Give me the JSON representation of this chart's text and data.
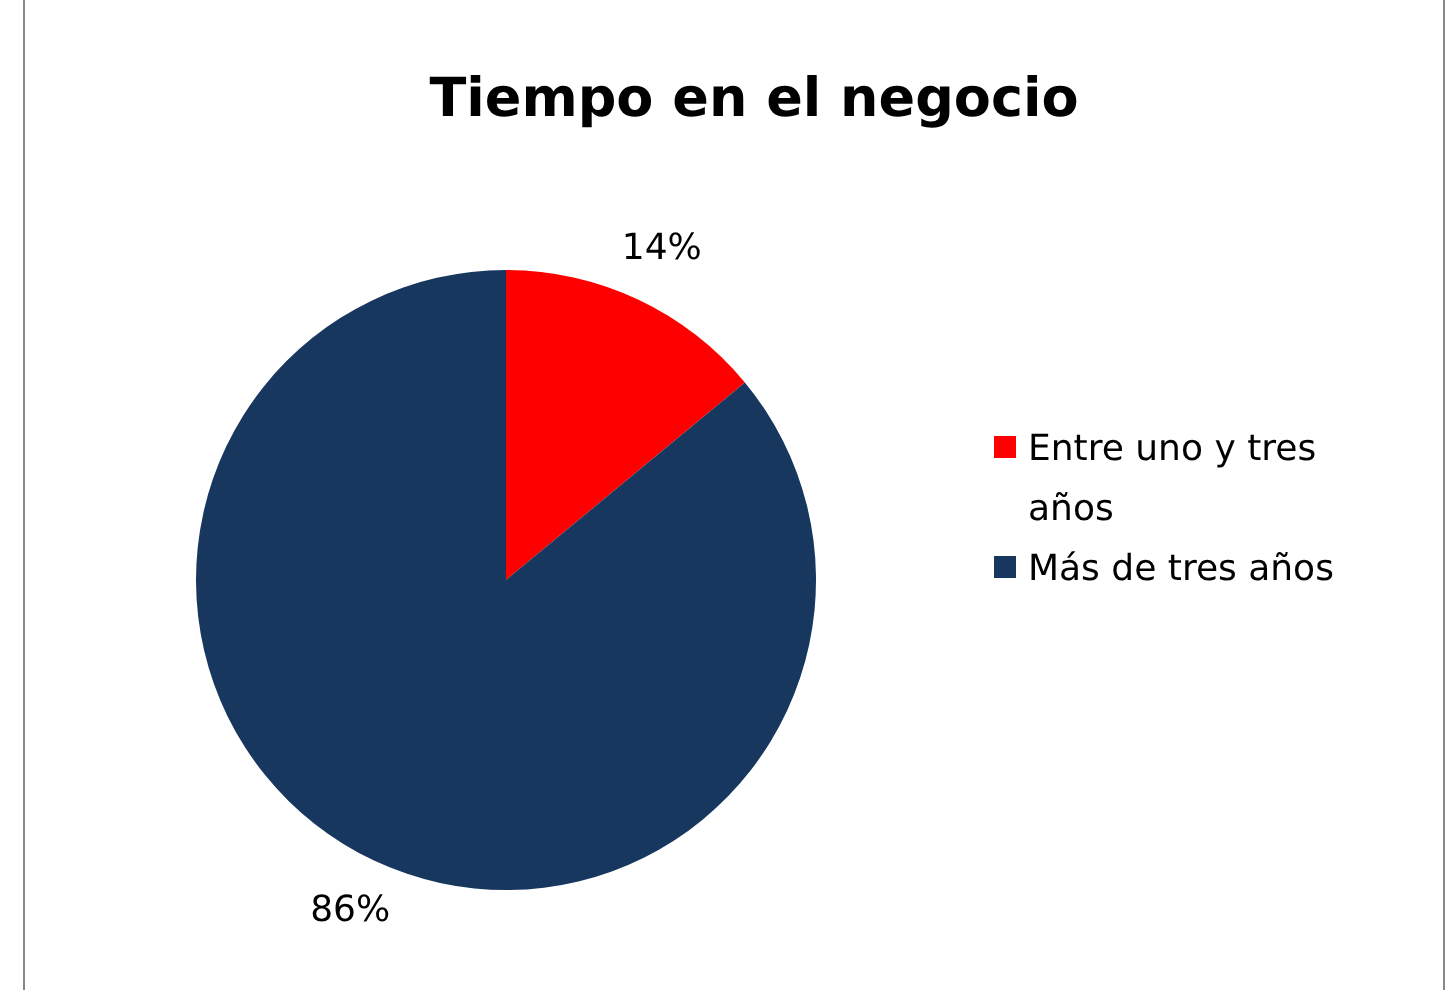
{
  "chart_data": {
    "type": "pie",
    "title": "Tiempo en el negocio",
    "categories": [
      "Entre uno y tres años",
      "Más de tres años"
    ],
    "values": [
      14,
      86
    ],
    "value_labels": [
      "14%",
      "86%"
    ],
    "colors": [
      "#ff0000",
      "#17375e"
    ],
    "legend": "right"
  }
}
